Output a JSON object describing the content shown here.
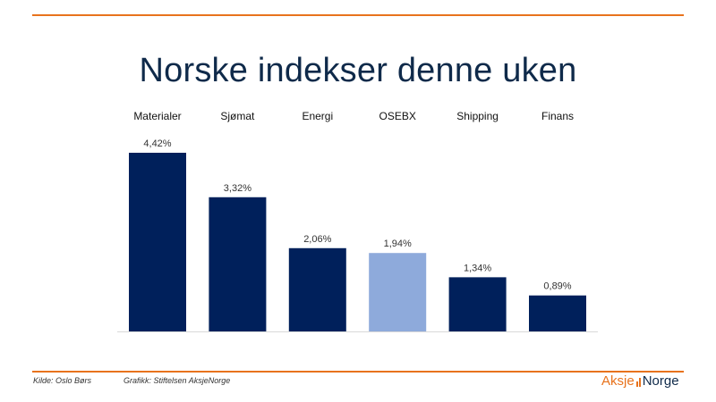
{
  "title": "Norske indekser denne uken",
  "chart_data": {
    "type": "bar",
    "title": "Norske indekser denne uken",
    "categories": [
      "Materialer",
      "Sjømat",
      "Energi",
      "OSEBX",
      "Shipping",
      "Finans"
    ],
    "values": [
      4.42,
      3.32,
      2.06,
      1.94,
      1.34,
      0.89
    ],
    "labels": [
      "4,42%",
      "3,32%",
      "2,06%",
      "1,94%",
      "1,34%",
      "0,89%"
    ],
    "ylim": [
      0,
      4.42
    ],
    "grid": false,
    "legend": "none",
    "category_labels_position": "top",
    "colors": {
      "default_bar": "#00205b",
      "highlight_bar": "#8eaadb",
      "highlight_category": "OSEBX",
      "axis_line": "#d9d9d9"
    }
  },
  "footer": {
    "source": "Kilde: Oslo Børs",
    "credit": "Grafikk: Stiftelsen AksjeNorge"
  },
  "logo": {
    "part1": "Aksje",
    "part2": "Norge"
  },
  "colors": {
    "accent": "#e8731d",
    "title": "#0f2a4a"
  }
}
